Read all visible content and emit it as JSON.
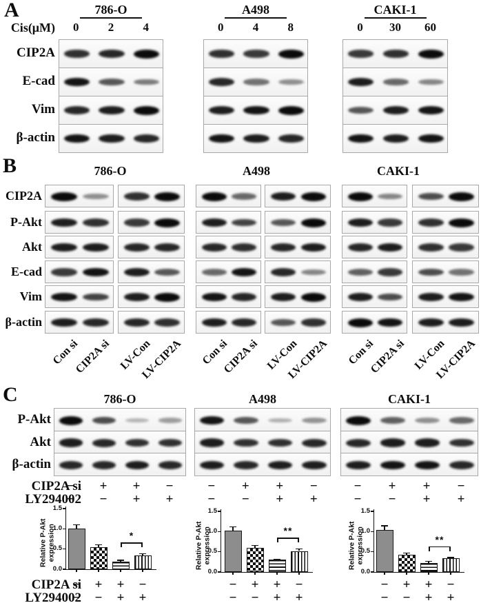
{
  "colors": {
    "background": "#ffffff",
    "band": "#0b0b0b",
    "bar_solid": "#8d8d8d",
    "axis": "#111111"
  },
  "panel_a": {
    "label": "A",
    "dose_label": "Cis(μM)",
    "row_labels": [
      "CIP2A",
      "E-cad",
      "Vim",
      "β-actin"
    ],
    "groups": [
      {
        "title": "786-O",
        "lanes": [
          "0",
          "2",
          "4"
        ],
        "bands": [
          [
            0.8,
            0.85,
            1.0
          ],
          [
            0.95,
            0.6,
            0.4
          ],
          [
            0.85,
            0.9,
            1.0
          ],
          [
            0.95,
            0.9,
            0.85
          ]
        ]
      },
      {
        "title": "A498",
        "lanes": [
          "0",
          "4",
          "8"
        ],
        "bands": [
          [
            0.8,
            0.75,
            1.0
          ],
          [
            0.85,
            0.45,
            0.3
          ],
          [
            0.9,
            0.95,
            1.0
          ],
          [
            0.95,
            0.9,
            0.85
          ]
        ]
      },
      {
        "title": "CAKI-1",
        "lanes": [
          "0",
          "30",
          "60"
        ],
        "bands": [
          [
            0.75,
            0.8,
            1.0
          ],
          [
            0.9,
            0.5,
            0.35
          ],
          [
            0.6,
            0.9,
            0.95
          ],
          [
            0.95,
            0.9,
            0.95
          ]
        ]
      }
    ]
  },
  "panel_b": {
    "label": "B",
    "row_labels": [
      "CIP2A",
      "P-Akt",
      "Akt",
      "E-cad",
      "Vim",
      "β-actin"
    ],
    "lane_labels": [
      "Con si",
      "CIP2A si",
      "LV-Con",
      "LV-CIP2A"
    ],
    "groups": [
      {
        "title": "786-O",
        "blocks": [
          [
            [
              1.0,
              0.3
            ],
            [
              0.9,
              0.8
            ],
            [
              0.9,
              0.9
            ],
            [
              0.75,
              0.95
            ],
            [
              0.95,
              0.7
            ],
            [
              0.9,
              0.85
            ]
          ],
          [
            [
              0.8,
              1.0
            ],
            [
              0.75,
              1.0
            ],
            [
              0.85,
              0.85
            ],
            [
              0.9,
              0.6
            ],
            [
              0.9,
              1.0
            ],
            [
              0.85,
              0.8
            ]
          ]
        ]
      },
      {
        "title": "A498",
        "blocks": [
          [
            [
              1.0,
              0.5
            ],
            [
              0.9,
              0.7
            ],
            [
              0.85,
              0.8
            ],
            [
              0.5,
              0.95
            ],
            [
              0.95,
              0.85
            ],
            [
              0.9,
              0.85
            ]
          ],
          [
            [
              0.9,
              1.0
            ],
            [
              0.6,
              1.0
            ],
            [
              0.85,
              0.9
            ],
            [
              0.85,
              0.35
            ],
            [
              0.9,
              1.0
            ],
            [
              0.6,
              0.8
            ]
          ]
        ]
      },
      {
        "title": "CAKI-1",
        "blocks": [
          [
            [
              1.0,
              0.35
            ],
            [
              0.9,
              0.75
            ],
            [
              0.85,
              0.9
            ],
            [
              0.55,
              0.75
            ],
            [
              0.9,
              0.65
            ],
            [
              1.0,
              0.95
            ]
          ],
          [
            [
              0.65,
              1.0
            ],
            [
              0.8,
              1.0
            ],
            [
              0.8,
              0.75
            ],
            [
              0.65,
              0.45
            ],
            [
              0.9,
              0.95
            ],
            [
              0.9,
              0.9
            ]
          ]
        ]
      }
    ]
  },
  "panel_c": {
    "label": "C",
    "row_labels": [
      "P-Akt",
      "Akt",
      "β-actin"
    ],
    "condition_labels": [
      "CIP2A si",
      "LY294002"
    ],
    "condition_values": [
      [
        "−",
        "+",
        "+",
        "−"
      ],
      [
        "−",
        "−",
        "+",
        "+"
      ]
    ],
    "groups": [
      {
        "title": "786-O",
        "bands": [
          [
            1.0,
            0.65,
            0.1,
            0.22
          ],
          [
            0.9,
            0.85,
            0.8,
            0.8
          ],
          [
            0.85,
            0.85,
            0.9,
            0.85
          ]
        ]
      },
      {
        "title": "A498",
        "bands": [
          [
            0.95,
            0.6,
            0.12,
            0.28
          ],
          [
            0.9,
            0.8,
            0.8,
            0.85
          ],
          [
            0.9,
            0.85,
            0.9,
            0.9
          ]
        ]
      },
      {
        "title": "CAKI-1",
        "bands": [
          [
            1.0,
            0.55,
            0.3,
            0.5
          ],
          [
            0.85,
            0.9,
            0.9,
            0.8
          ],
          [
            0.9,
            0.95,
            0.95,
            0.85
          ]
        ]
      }
    ]
  },
  "chart_data": [
    {
      "type": "bar",
      "title": "786-O",
      "ylabel": "Relative P-Akt expression",
      "ylim": [
        0,
        1.5
      ],
      "yticks": [
        "0.0",
        "0.5",
        "1.0",
        "1.5"
      ],
      "categories": [
        "CIP2A si −/LY294002 −",
        "CIP2A si +/LY294002 −",
        "CIP2A si +/LY294002 +",
        "CIP2A si −/LY294002 +"
      ],
      "values": [
        1.0,
        0.54,
        0.19,
        0.34
      ],
      "errors": [
        0.1,
        0.07,
        0.03,
        0.04
      ],
      "patterns": [
        "solid",
        "checker",
        "hlines",
        "vlines"
      ],
      "significance": {
        "bars": [
          3,
          4
        ],
        "label": "*"
      },
      "condition_rows": [
        {
          "label": "CIP2A si",
          "values": [
            "−",
            "+",
            "+",
            "−"
          ]
        },
        {
          "label": "LY294002",
          "values": [
            "−",
            "−",
            "+",
            "+"
          ]
        }
      ]
    },
    {
      "type": "bar",
      "title": "A498",
      "ylabel": "Relative P-Akt  expression",
      "ylim": [
        0,
        1.5
      ],
      "yticks": [
        "0.0",
        "0.5",
        "1.0",
        "1.5"
      ],
      "categories": [
        "CIP2A si −/LY294002 −",
        "CIP2A si +/LY294002 −",
        "CIP2A si +/LY294002 +",
        "CIP2A si −/LY294002 +"
      ],
      "values": [
        1.03,
        0.6,
        0.3,
        0.52
      ],
      "errors": [
        0.09,
        0.06,
        0.02,
        0.05
      ],
      "patterns": [
        "solid",
        "checker",
        "hlines",
        "vlines"
      ],
      "significance": {
        "bars": [
          3,
          4
        ],
        "label": "**"
      },
      "condition_rows": [
        {
          "label": "CIP2A si",
          "values": [
            "−",
            "+",
            "+",
            "−"
          ]
        },
        {
          "label": "LY294002",
          "values": [
            "−",
            "−",
            "+",
            "+"
          ]
        }
      ]
    },
    {
      "type": "bar",
      "title": "CAKI-1",
      "ylabel": "Relative P-Akt expression",
      "ylim": [
        0,
        1.5
      ],
      "yticks": [
        "0.0",
        "0.5",
        "1.0",
        "1.5"
      ],
      "categories": [
        "CIP2A si −/LY294002 −",
        "CIP2A si +/LY294002 −",
        "CIP2A si +/LY294002 +",
        "CIP2A si −/LY294002 +"
      ],
      "values": [
        1.04,
        0.42,
        0.22,
        0.34
      ],
      "errors": [
        0.1,
        0.05,
        0.05,
        0.02
      ],
      "patterns": [
        "solid",
        "checker",
        "hlines",
        "vlines"
      ],
      "significance": {
        "bars": [
          3,
          4
        ],
        "label": "**"
      },
      "condition_rows": [
        {
          "label": "CIP2A si",
          "values": [
            "−",
            "+",
            "+",
            "−"
          ]
        },
        {
          "label": "LY294002",
          "values": [
            "−",
            "−",
            "+",
            "+"
          ]
        }
      ]
    }
  ]
}
